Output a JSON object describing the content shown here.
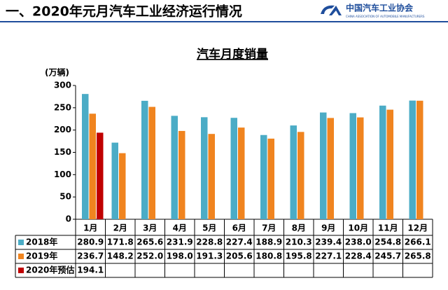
{
  "header": {
    "title": "一、2020年元月汽车工业经济运行情况",
    "logo_text": "中国汽车工业协会",
    "logo_subtext": "CHINA ASSOCIATION OF AUTOMOBILE MANUFACTURERS"
  },
  "chart_data": {
    "type": "bar",
    "title": "汽车月度销量",
    "y_label": "(万辆)",
    "categories": [
      "1月",
      "2月",
      "3月",
      "4月",
      "5月",
      "6月",
      "7月",
      "8月",
      "9月",
      "10月",
      "11月",
      "12月"
    ],
    "series": [
      {
        "name": "2018年",
        "color": "#4bacc6",
        "values": [
          280.9,
          171.8,
          265.6,
          231.9,
          228.8,
          227.4,
          188.9,
          210.3,
          239.4,
          238,
          254.8,
          266.1
        ],
        "value_labels": [
          "280.9",
          "171.8",
          "265.6",
          "231.9",
          "228.8",
          "227.4",
          "188.9",
          "210.3",
          "239.4",
          "238.0",
          "254.8",
          "266.1"
        ]
      },
      {
        "name": "2019年",
        "color": "#f0841f",
        "values": [
          236.7,
          148.2,
          252,
          198,
          191.3,
          205.6,
          180.8,
          195.8,
          227.1,
          228.4,
          245.7,
          265.8
        ],
        "value_labels": [
          "236.7",
          "148.2",
          "252.0",
          "198.0",
          "191.3",
          "205.6",
          "180.8",
          "195.8",
          "227.1",
          "228.4",
          "245.7",
          "265.8"
        ]
      },
      {
        "name": "2020年预估",
        "color": "#c00000",
        "values": [
          194.1,
          null,
          null,
          null,
          null,
          null,
          null,
          null,
          null,
          null,
          null,
          null
        ],
        "value_labels": [
          "194.1",
          null,
          null,
          null,
          null,
          null,
          null,
          null,
          null,
          null,
          null,
          null
        ]
      }
    ],
    "ylim": [
      0,
      300
    ],
    "yticks": [
      0,
      50,
      100,
      150,
      200,
      250,
      300
    ],
    "grid": false
  }
}
